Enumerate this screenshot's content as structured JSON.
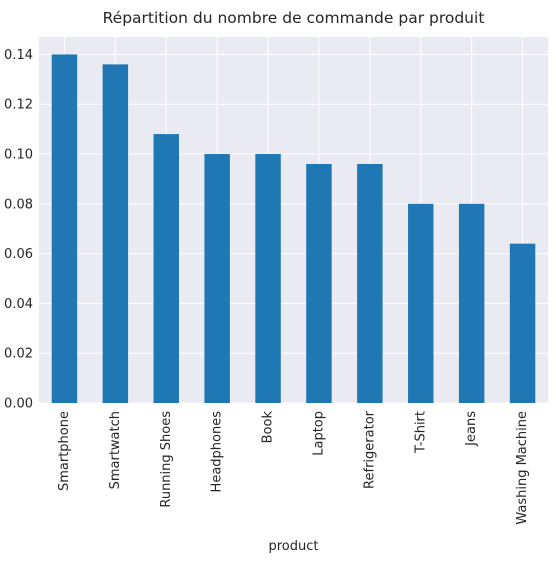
{
  "chart_data": {
    "type": "bar",
    "title": "Répartition du nombre de commande par produit",
    "xlabel": "product",
    "ylabel": "",
    "categories": [
      "Smartphone",
      "Smartwatch",
      "Running Shoes",
      "Headphones",
      "Book",
      "Laptop",
      "Refrigerator",
      "T-Shirt",
      "Jeans",
      "Washing Machine"
    ],
    "values": [
      0.14,
      0.136,
      0.108,
      0.1,
      0.1,
      0.096,
      0.096,
      0.08,
      0.08,
      0.064
    ],
    "ylim": [
      0,
      0.147
    ],
    "yticks": [
      "0.00",
      "0.02",
      "0.04",
      "0.06",
      "0.08",
      "0.10",
      "0.12",
      "0.14"
    ],
    "grid": true,
    "legend": "none",
    "colors": {
      "bar": "#1f77b4",
      "plot_background": "#eaeaf2",
      "grid": "#ffffff",
      "text": "#262626"
    }
  }
}
